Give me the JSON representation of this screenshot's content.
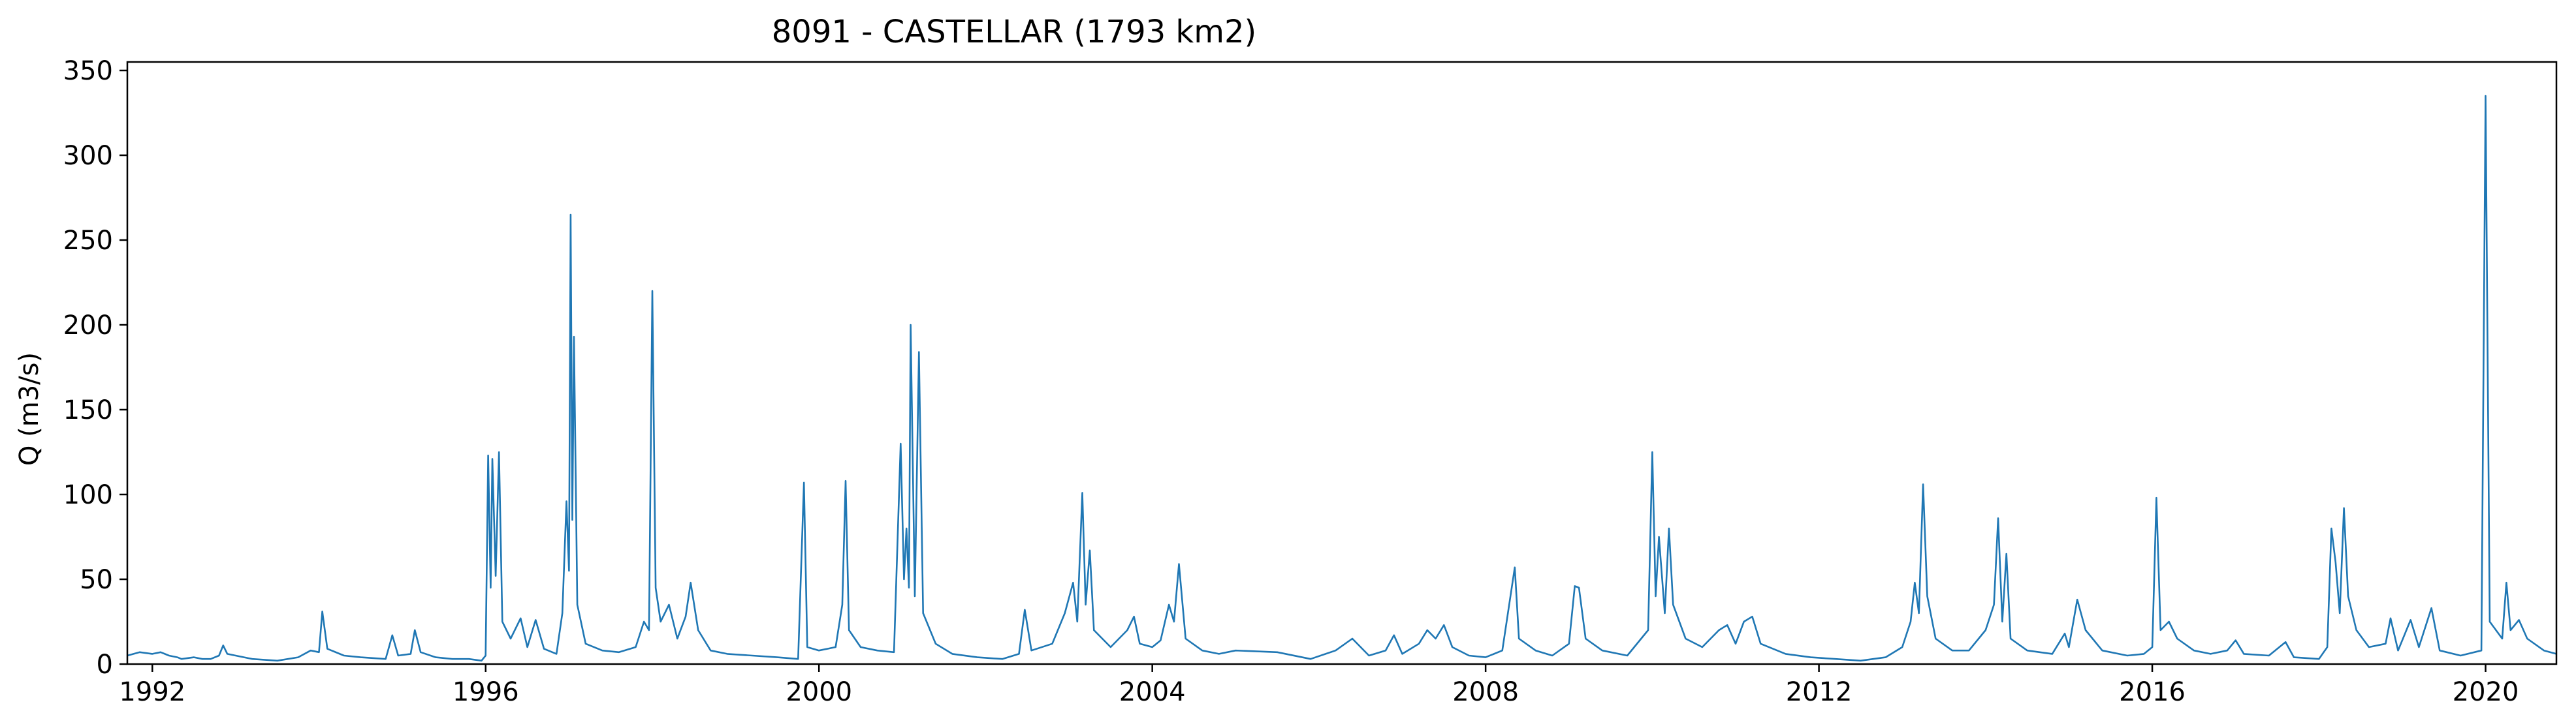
{
  "chart_data": {
    "type": "line",
    "title": "8091 - CASTELLAR (1793 km2)",
    "xlabel": "",
    "ylabel": "Q (m3/s)",
    "xlim": [
      1991.7,
      2020.85
    ],
    "ylim": [
      0,
      355
    ],
    "x_ticks": [
      "1992",
      "1996",
      "2000",
      "2004",
      "2008",
      "2012",
      "2016",
      "2020"
    ],
    "y_ticks": [
      "0",
      "50",
      "100",
      "150",
      "200",
      "250",
      "300",
      "350"
    ],
    "grid": false,
    "legend": "none",
    "series": [
      {
        "color": "#1f77b4",
        "points": [
          [
            1991.7,
            5
          ],
          [
            1991.85,
            7
          ],
          [
            1992.0,
            6
          ],
          [
            1992.1,
            7
          ],
          [
            1992.2,
            5
          ],
          [
            1992.3,
            4
          ],
          [
            1992.35,
            3
          ],
          null,
          [
            1992.5,
            4
          ],
          [
            1992.6,
            3
          ],
          [
            1992.7,
            3
          ],
          [
            1992.8,
            5
          ],
          [
            1992.85,
            11
          ],
          [
            1992.9,
            6
          ],
          [
            1993.0,
            5
          ],
          [
            1993.2,
            3
          ],
          [
            1993.5,
            2
          ],
          [
            1993.75,
            4
          ],
          [
            1993.9,
            8
          ],
          [
            1994.0,
            7
          ],
          [
            1994.04,
            31
          ],
          [
            1994.1,
            9
          ],
          [
            1994.3,
            5
          ],
          [
            1994.5,
            4
          ],
          [
            1994.8,
            3
          ],
          [
            1994.88,
            17
          ],
          [
            1994.95,
            5
          ],
          [
            1995.1,
            6
          ],
          [
            1995.15,
            20
          ],
          [
            1995.22,
            7
          ],
          [
            1995.4,
            4
          ],
          [
            1995.6,
            3
          ],
          [
            1995.8,
            3
          ],
          [
            1995.95,
            2
          ],
          [
            1996.0,
            5
          ],
          [
            1996.03,
            123
          ],
          [
            1996.06,
            45
          ],
          [
            1996.08,
            121
          ],
          [
            1996.12,
            52
          ],
          [
            1996.16,
            125
          ],
          [
            1996.2,
            25
          ],
          [
            1996.3,
            15
          ],
          [
            1996.42,
            27
          ],
          [
            1996.5,
            10
          ],
          [
            1996.6,
            26
          ],
          [
            1996.7,
            9
          ],
          [
            1996.85,
            6
          ],
          [
            1996.92,
            30
          ],
          [
            1996.97,
            96
          ],
          [
            1997.0,
            55
          ],
          [
            1997.02,
            265
          ],
          [
            1997.04,
            85
          ],
          [
            1997.06,
            193
          ],
          [
            1997.1,
            35
          ],
          [
            1997.2,
            12
          ],
          [
            1997.4,
            8
          ],
          [
            1997.6,
            7
          ],
          [
            1997.8,
            10
          ],
          [
            1997.9,
            25
          ],
          [
            1997.96,
            20
          ],
          [
            1998.0,
            220
          ],
          [
            1998.04,
            45
          ],
          [
            1998.1,
            25
          ],
          [
            1998.2,
            35
          ],
          [
            1998.3,
            15
          ],
          [
            1998.4,
            28
          ],
          [
            1998.46,
            48
          ],
          [
            1998.55,
            20
          ],
          [
            1998.7,
            8
          ],
          [
            1998.9,
            6
          ],
          [
            1999.2,
            5
          ],
          [
            1999.5,
            4
          ],
          [
            1999.75,
            3
          ],
          [
            1999.82,
            107
          ],
          [
            1999.86,
            10
          ],
          [
            2000.0,
            8
          ],
          [
            2000.2,
            10
          ],
          [
            2000.28,
            35
          ],
          [
            2000.32,
            108
          ],
          [
            2000.36,
            20
          ],
          [
            2000.5,
            10
          ],
          [
            2000.7,
            8
          ],
          [
            2000.9,
            7
          ],
          [
            2000.98,
            130
          ],
          [
            2001.02,
            50
          ],
          [
            2001.05,
            80
          ],
          [
            2001.08,
            45
          ],
          [
            2001.1,
            200
          ],
          [
            2001.15,
            40
          ],
          [
            2001.2,
            184
          ],
          [
            2001.25,
            30
          ],
          [
            2001.4,
            12
          ],
          [
            2001.6,
            6
          ],
          [
            2001.9,
            4
          ],
          [
            2002.2,
            3
          ],
          [
            2002.4,
            6
          ],
          [
            2002.47,
            32
          ],
          [
            2002.55,
            8
          ],
          [
            2002.8,
            12
          ],
          [
            2002.95,
            30
          ],
          [
            2003.05,
            48
          ],
          [
            2003.1,
            25
          ],
          [
            2003.16,
            101
          ],
          [
            2003.2,
            35
          ],
          [
            2003.25,
            67
          ],
          [
            2003.3,
            20
          ],
          [
            2003.5,
            10
          ],
          [
            2003.7,
            20
          ],
          [
            2003.78,
            28
          ],
          [
            2003.85,
            12
          ],
          [
            2004.0,
            10
          ],
          [
            2004.1,
            14
          ],
          [
            2004.2,
            35
          ],
          [
            2004.26,
            25
          ],
          [
            2004.32,
            59
          ],
          [
            2004.4,
            15
          ],
          [
            2004.6,
            8
          ],
          [
            2004.8,
            6
          ],
          [
            2005.0,
            8
          ],
          [
            2005.5,
            7
          ],
          [
            2005.9,
            3
          ],
          [
            2006.2,
            8
          ],
          [
            2006.4,
            15
          ],
          [
            2006.6,
            5
          ],
          [
            2006.8,
            8
          ],
          [
            2006.9,
            17
          ],
          [
            2007.0,
            6
          ],
          [
            2007.2,
            12
          ],
          [
            2007.3,
            20
          ],
          [
            2007.4,
            15
          ],
          [
            2007.5,
            23
          ],
          [
            2007.6,
            10
          ],
          [
            2007.8,
            5
          ],
          [
            2008.0,
            4
          ],
          [
            2008.2,
            8
          ],
          [
            2008.35,
            57
          ],
          [
            2008.4,
            15
          ],
          [
            2008.6,
            8
          ],
          [
            2008.8,
            5
          ],
          [
            2009.0,
            12
          ],
          [
            2009.07,
            46
          ],
          [
            2009.12,
            45
          ],
          [
            2009.2,
            15
          ],
          [
            2009.4,
            8
          ],
          [
            2009.7,
            5
          ],
          [
            2009.95,
            20
          ],
          [
            2010.0,
            125
          ],
          [
            2010.04,
            40
          ],
          [
            2010.08,
            75
          ],
          [
            2010.15,
            30
          ],
          [
            2010.2,
            80
          ],
          [
            2010.25,
            35
          ],
          [
            2010.4,
            15
          ],
          [
            2010.6,
            10
          ],
          [
            2010.8,
            20
          ],
          [
            2010.9,
            23
          ],
          [
            2011.0,
            12
          ],
          [
            2011.1,
            25
          ],
          [
            2011.2,
            28
          ],
          [
            2011.3,
            12
          ],
          [
            2011.6,
            6
          ],
          [
            2011.9,
            4
          ],
          [
            2012.2,
            3
          ],
          [
            2012.5,
            2
          ],
          [
            2012.8,
            4
          ],
          [
            2013.0,
            10
          ],
          [
            2013.1,
            25
          ],
          [
            2013.15,
            48
          ],
          [
            2013.2,
            30
          ],
          [
            2013.25,
            106
          ],
          [
            2013.3,
            40
          ],
          [
            2013.4,
            15
          ],
          [
            2013.6,
            8
          ],
          [
            2013.8,
            8
          ],
          [
            2014.0,
            20
          ],
          [
            2014.1,
            35
          ],
          [
            2014.15,
            86
          ],
          [
            2014.2,
            25
          ],
          [
            2014.25,
            65
          ],
          [
            2014.3,
            15
          ],
          [
            2014.5,
            8
          ],
          [
            2014.8,
            6
          ],
          [
            2014.95,
            18
          ],
          [
            2015.0,
            10
          ],
          [
            2015.1,
            38
          ],
          [
            2015.2,
            20
          ],
          [
            2015.4,
            8
          ],
          [
            2015.7,
            5
          ],
          [
            2015.9,
            6
          ],
          [
            2016.0,
            10
          ],
          [
            2016.05,
            98
          ],
          [
            2016.1,
            20
          ],
          [
            2016.2,
            25
          ],
          [
            2016.3,
            15
          ],
          [
            2016.5,
            8
          ],
          [
            2016.7,
            6
          ],
          [
            2016.9,
            8
          ],
          [
            2017.0,
            14
          ],
          [
            2017.1,
            6
          ],
          [
            2017.4,
            5
          ],
          [
            2017.6,
            13
          ],
          [
            2017.7,
            4
          ],
          [
            2018.0,
            3
          ],
          [
            2018.1,
            10
          ],
          [
            2018.15,
            80
          ],
          [
            2018.2,
            60
          ],
          [
            2018.25,
            30
          ],
          [
            2018.3,
            92
          ],
          [
            2018.35,
            40
          ],
          [
            2018.45,
            20
          ],
          [
            2018.6,
            10
          ],
          [
            2018.8,
            12
          ],
          [
            2018.86,
            27
          ],
          [
            2018.95,
            8
          ],
          [
            2019.1,
            26
          ],
          [
            2019.2,
            10
          ],
          [
            2019.35,
            33
          ],
          [
            2019.45,
            8
          ],
          [
            2019.7,
            5
          ],
          [
            2019.95,
            8
          ],
          [
            2020.0,
            335
          ],
          [
            2020.05,
            25
          ],
          [
            2020.2,
            15
          ],
          [
            2020.25,
            48
          ],
          [
            2020.3,
            20
          ],
          [
            2020.4,
            26
          ],
          [
            2020.5,
            15
          ],
          [
            2020.7,
            8
          ],
          [
            2020.85,
            6
          ]
        ]
      }
    ]
  }
}
